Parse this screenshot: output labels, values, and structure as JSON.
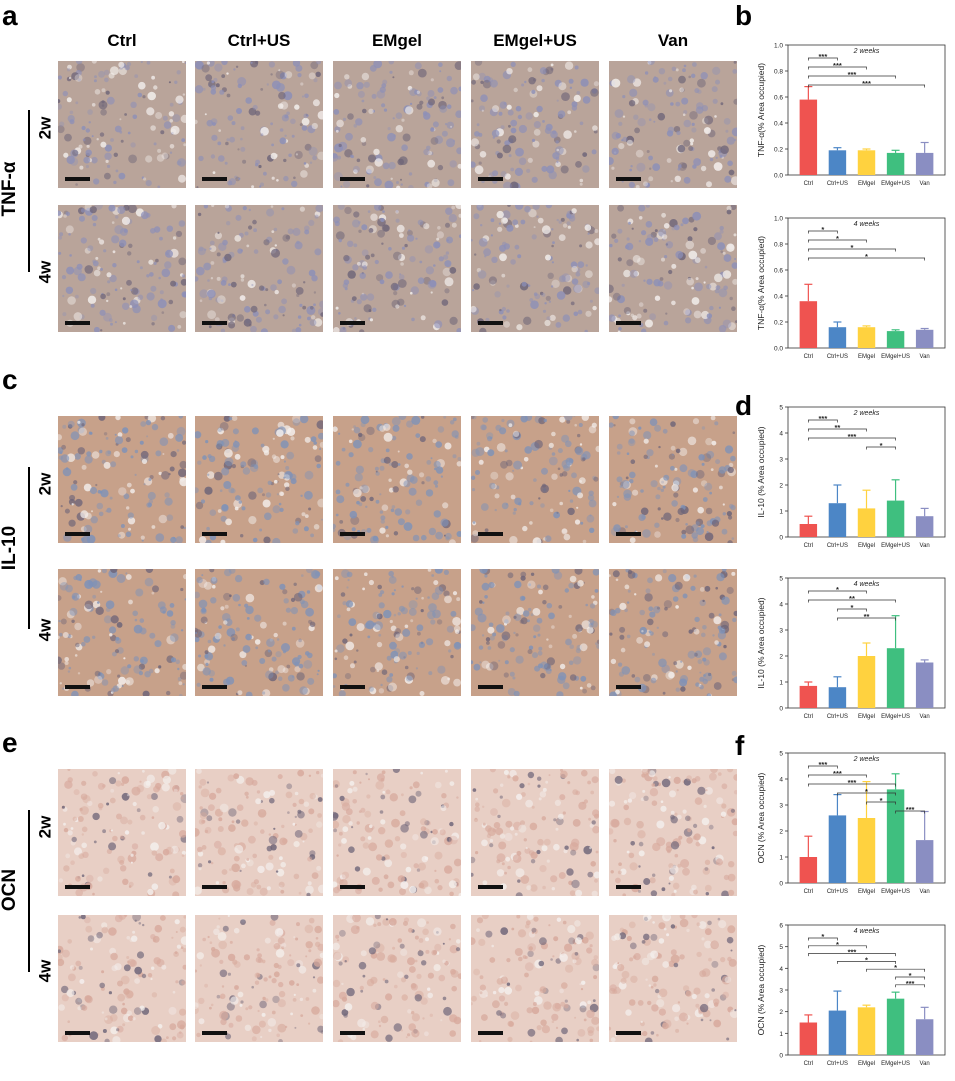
{
  "panel_letters": {
    "a": "a",
    "b": "b",
    "c": "c",
    "d": "d",
    "e": "e",
    "f": "f"
  },
  "columns": [
    "Ctrl",
    "Ctrl+US",
    "EMgel",
    "EMgel+US",
    "Van"
  ],
  "markers": [
    {
      "label": "TNF-α",
      "tint": "#8c8fb8",
      "tint2": "#b9a49a"
    },
    {
      "label": "IL-10",
      "tint": "#7e92b8",
      "tint2": "#c7a18a"
    },
    {
      "label": "OCN",
      "tint": "#d7a99c",
      "tint2": "#e8cfc5"
    }
  ],
  "time_labels": [
    "2w",
    "4w"
  ],
  "colors": {
    "Ctrl": "#ef5350",
    "Ctrl+US": "#4c86c6",
    "EMgel": "#ffd23f",
    "EMgel+US": "#3fbf7f",
    "Van": "#8a8ec2"
  },
  "chart_data": [
    {
      "id": "b1",
      "type": "bar",
      "title": "2 weeks",
      "ylabel": "TNF-α(% Area occupied)",
      "categories": [
        "Ctrl",
        "Ctrl+US",
        "EMgel",
        "EMgel+US",
        "Van"
      ],
      "values": [
        0.58,
        0.19,
        0.19,
        0.17,
        0.17
      ],
      "errors": [
        0.1,
        0.02,
        0.01,
        0.02,
        0.08
      ],
      "ylim": [
        0,
        1.0
      ],
      "yticks": [
        "0.0",
        "0.2",
        "0.4",
        "0.6",
        "0.8",
        "1.0"
      ],
      "ytick_values": [
        0,
        0.2,
        0.4,
        0.6,
        0.8,
        1.0
      ],
      "brackets": [
        {
          "from": 0,
          "to": 1,
          "label": "***"
        },
        {
          "from": 0,
          "to": 2,
          "label": "***"
        },
        {
          "from": 0,
          "to": 3,
          "label": "***"
        },
        {
          "from": 0,
          "to": 4,
          "label": "***"
        }
      ]
    },
    {
      "id": "b2",
      "type": "bar",
      "title": "4 weeks",
      "ylabel": "TNF-α(% Area occupied)",
      "categories": [
        "Ctrl",
        "Ctrl+US",
        "EMgel",
        "EMgel+US",
        "Van"
      ],
      "values": [
        0.36,
        0.16,
        0.16,
        0.13,
        0.14
      ],
      "errors": [
        0.13,
        0.04,
        0.01,
        0.01,
        0.01
      ],
      "ylim": [
        0,
        1.0
      ],
      "yticks": [
        "0.0",
        "0.2",
        "0.4",
        "0.6",
        "0.8",
        "1.0"
      ],
      "ytick_values": [
        0,
        0.2,
        0.4,
        0.6,
        0.8,
        1.0
      ],
      "brackets": [
        {
          "from": 0,
          "to": 1,
          "label": "*"
        },
        {
          "from": 0,
          "to": 2,
          "label": "*"
        },
        {
          "from": 0,
          "to": 3,
          "label": "*"
        },
        {
          "from": 0,
          "to": 4,
          "label": "*"
        }
      ]
    },
    {
      "id": "d1",
      "type": "bar",
      "title": "2 weeks",
      "ylabel": "IL-10 (% Area occupied)",
      "categories": [
        "Ctrl",
        "Ctrl+US",
        "EMgel",
        "EMgel+US",
        "Van"
      ],
      "values": [
        0.5,
        1.3,
        1.1,
        1.4,
        0.8
      ],
      "errors": [
        0.3,
        0.7,
        0.7,
        0.8,
        0.3
      ],
      "ylim": [
        0,
        5
      ],
      "yticks": [
        "0",
        "1",
        "2",
        "3",
        "4",
        "5"
      ],
      "ytick_values": [
        0,
        1,
        2,
        3,
        4,
        5
      ],
      "brackets": [
        {
          "from": 0,
          "to": 1,
          "label": "***"
        },
        {
          "from": 0,
          "to": 2,
          "label": "**"
        },
        {
          "from": 0,
          "to": 3,
          "label": "***"
        },
        {
          "from": 2,
          "to": 3,
          "label": "*"
        }
      ]
    },
    {
      "id": "d2",
      "type": "bar",
      "title": "4 weeks",
      "ylabel": "IL-10 (% Area occupied)",
      "categories": [
        "Ctrl",
        "Ctrl+US",
        "EMgel",
        "EMgel+US",
        "Van"
      ],
      "values": [
        0.85,
        0.8,
        2.0,
        2.3,
        1.75
      ],
      "errors": [
        0.15,
        0.4,
        0.5,
        1.25,
        0.1
      ],
      "ylim": [
        0,
        5
      ],
      "yticks": [
        "0",
        "1",
        "2",
        "3",
        "4",
        "5"
      ],
      "ytick_values": [
        0,
        1,
        2,
        3,
        4,
        5
      ],
      "brackets": [
        {
          "from": 0,
          "to": 2,
          "label": "*"
        },
        {
          "from": 0,
          "to": 3,
          "label": "**"
        },
        {
          "from": 1,
          "to": 2,
          "label": "*"
        },
        {
          "from": 1,
          "to": 3,
          "label": "**"
        }
      ]
    },
    {
      "id": "f1",
      "type": "bar",
      "title": "2 weeks",
      "ylabel": "OCN (% Area occupied)",
      "categories": [
        "Ctrl",
        "Ctrl+US",
        "EMgel",
        "EMgel+US",
        "Van"
      ],
      "values": [
        1.0,
        2.6,
        2.5,
        3.6,
        1.65
      ],
      "errors": [
        0.8,
        0.8,
        1.4,
        0.6,
        1.1
      ],
      "ylim": [
        0,
        5
      ],
      "yticks": [
        "0",
        "1",
        "2",
        "3",
        "4",
        "5"
      ],
      "ytick_values": [
        0,
        1,
        2,
        3,
        4,
        5
      ],
      "brackets": [
        {
          "from": 0,
          "to": 1,
          "label": "***"
        },
        {
          "from": 0,
          "to": 2,
          "label": "***"
        },
        {
          "from": 0,
          "to": 3,
          "label": "***"
        },
        {
          "from": 1,
          "to": 3,
          "label": "*"
        },
        {
          "from": 2,
          "to": 3,
          "label": "*"
        },
        {
          "from": 3,
          "to": 4,
          "label": "***"
        }
      ]
    },
    {
      "id": "f2",
      "type": "bar",
      "title": "4 weeks",
      "ylabel": "OCN (% Area occupied)",
      "categories": [
        "Ctrl",
        "Ctrl+US",
        "EMgel",
        "EMgel+US",
        "Van"
      ],
      "values": [
        1.5,
        2.05,
        2.2,
        2.6,
        1.65
      ],
      "errors": [
        0.35,
        0.9,
        0.1,
        0.3,
        0.55
      ],
      "ylim": [
        0,
        6
      ],
      "yticks": [
        "0",
        "1",
        "2",
        "3",
        "4",
        "5",
        "6"
      ],
      "ytick_values": [
        0,
        1,
        2,
        3,
        4,
        5,
        6
      ],
      "brackets": [
        {
          "from": 0,
          "to": 1,
          "label": "*"
        },
        {
          "from": 0,
          "to": 2,
          "label": "*"
        },
        {
          "from": 0,
          "to": 3,
          "label": "***"
        },
        {
          "from": 1,
          "to": 3,
          "label": "*"
        },
        {
          "from": 2,
          "to": 4,
          "label": "*"
        },
        {
          "from": 3,
          "to": 4,
          "label": "*"
        },
        {
          "from": 3,
          "to": 4,
          "label": "***"
        }
      ]
    }
  ]
}
